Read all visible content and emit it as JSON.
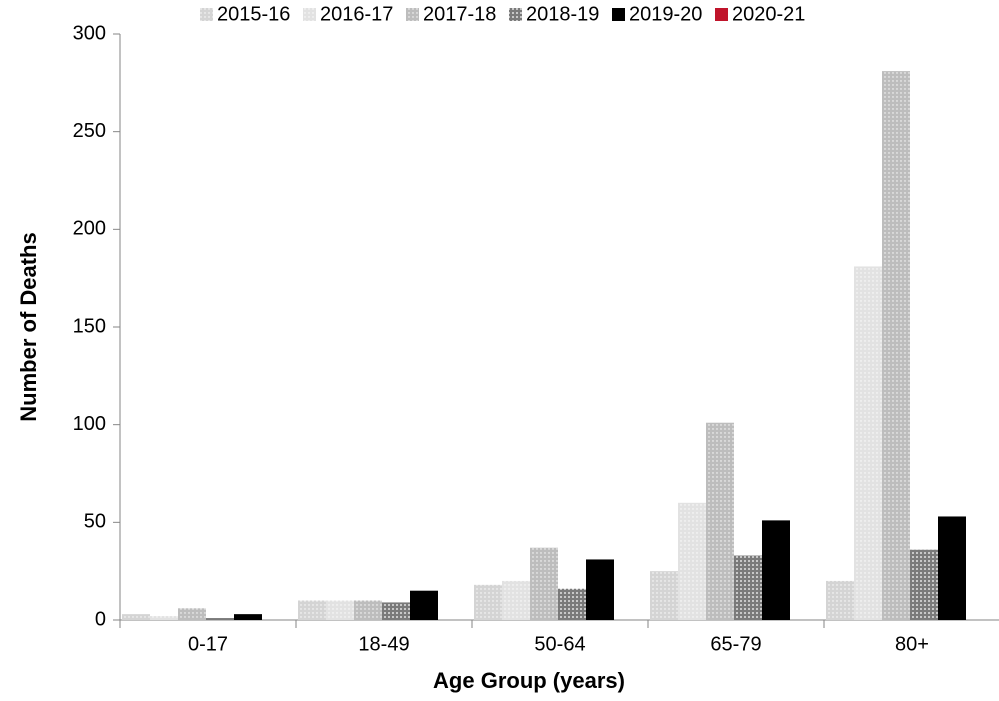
{
  "chart_data": {
    "type": "bar",
    "xlabel": "Age Group (years)",
    "ylabel": "Number of Deaths",
    "categories": [
      "0-17",
      "18-49",
      "50-64",
      "65-79",
      "80+"
    ],
    "series": [
      {
        "name": "2015-16",
        "color": "#d4d4d4",
        "values": [
          3,
          10,
          18,
          25,
          20
        ]
      },
      {
        "name": "2016-17",
        "color": "#e2e2e2",
        "values": [
          2,
          10,
          20,
          60,
          181
        ]
      },
      {
        "name": "2017-18",
        "color": "#bdbdbd",
        "values": [
          6,
          10,
          37,
          101,
          281
        ]
      },
      {
        "name": "2018-19",
        "color": "#7a7a7a",
        "values": [
          1,
          9,
          16,
          33,
          36
        ]
      },
      {
        "name": "2019-20",
        "color": "#000000",
        "values": [
          3,
          15,
          31,
          51,
          53
        ]
      },
      {
        "name": "2020-21",
        "color": "#c0142b",
        "values": [
          0,
          0,
          0,
          0,
          0
        ]
      }
    ],
    "ylim": [
      0,
      300
    ],
    "yticks": [
      0,
      50,
      100,
      150,
      200,
      250,
      300
    ],
    "legend": "top",
    "grid": false
  }
}
